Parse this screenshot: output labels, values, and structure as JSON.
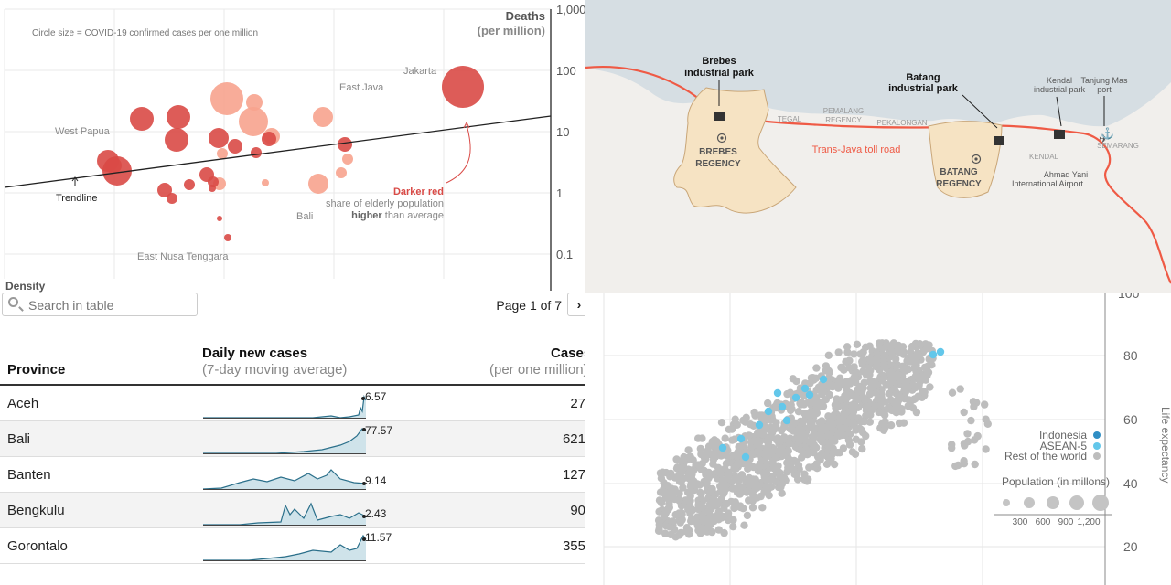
{
  "chart_data": [
    {
      "type": "scatter",
      "ylabel": "Deaths",
      "ylabel_sub": "(per million)",
      "xlabel": "Density",
      "y_scale": "log",
      "ylim": [
        0.05,
        1000
      ],
      "yticks": [
        "1,000",
        "100",
        "10",
        "1",
        "0.1"
      ],
      "size_note": "Circle size = COVID-19 confirmed cases per one million",
      "trendline_label": "Trendline",
      "annotation_title": "Darker red",
      "annotation_line1": "share of elderly population",
      "annotation_line2_bold": "higher",
      "annotation_line2_rest": " than average",
      "province_labels": [
        "Jakarta",
        "East Java",
        "West Papua",
        "Bali",
        "East Nusa Tenggara"
      ],
      "colors": {
        "high_elderly": "#d94a46",
        "low_elderly": "#f7a38e",
        "trend": "#222222"
      }
    },
    {
      "type": "scatter",
      "ylabel": "Life expectancy",
      "yticks": [
        "100",
        "80",
        "60",
        "40",
        "20"
      ],
      "legend": [
        {
          "name": "Indonesia",
          "color": "#2f8ec4"
        },
        {
          "name": "ASEAN-5",
          "color": "#63c7ea"
        },
        {
          "name": "Rest of the world",
          "color": "#bdbdbd"
        }
      ],
      "size_legend_title": "Population (in millons)",
      "size_legend_ticks": [
        "300",
        "600",
        "900",
        "1,200"
      ]
    }
  ],
  "map": {
    "labels": {
      "brebes_park": [
        "Brebes",
        "industrial park"
      ],
      "batang_park": [
        "Batang",
        "industrial park"
      ],
      "kendal_park": [
        "Kendal",
        "industrial park"
      ],
      "tanjung_mas": [
        "Tanjung Mas",
        "port"
      ],
      "brebes_regency": [
        "BREBES",
        "REGENCY"
      ],
      "batang_regency": [
        "BATANG",
        "REGENCY"
      ],
      "tegal": "TEGAL",
      "pemalang": [
        "PEMALANG",
        "REGENCY"
      ],
      "pekalongan": "PEKALONGAN",
      "kendal": "KENDAL",
      "semarang": "SEMARANG",
      "toll_road": "Trans-Java toll road",
      "airport": [
        "Ahmad Yani",
        "International Airport"
      ]
    },
    "colors": {
      "sea": "#d6dee3",
      "land": "#f1efec",
      "regency": "#f6e3c3",
      "road": "#ef5a45"
    }
  },
  "table": {
    "search_placeholder": "Search in table",
    "pager": "Page 1 of 7",
    "next": "›",
    "col_province": "Province",
    "col_daily": "Daily new cases",
    "col_daily_sub": "(7-day moving average)",
    "col_cases": "Cases",
    "col_cases_sub": "(per one million)",
    "rows": [
      {
        "province": "Aceh",
        "latest": "6.57",
        "cases": "27"
      },
      {
        "province": "Bali",
        "latest": "77.57",
        "cases": "621"
      },
      {
        "province": "Banten",
        "latest": "9.14",
        "cases": "127"
      },
      {
        "province": "Bengkulu",
        "latest": "2.43",
        "cases": "90"
      },
      {
        "province": "Gorontalo",
        "latest": "11.57",
        "cases": "355"
      }
    ]
  }
}
